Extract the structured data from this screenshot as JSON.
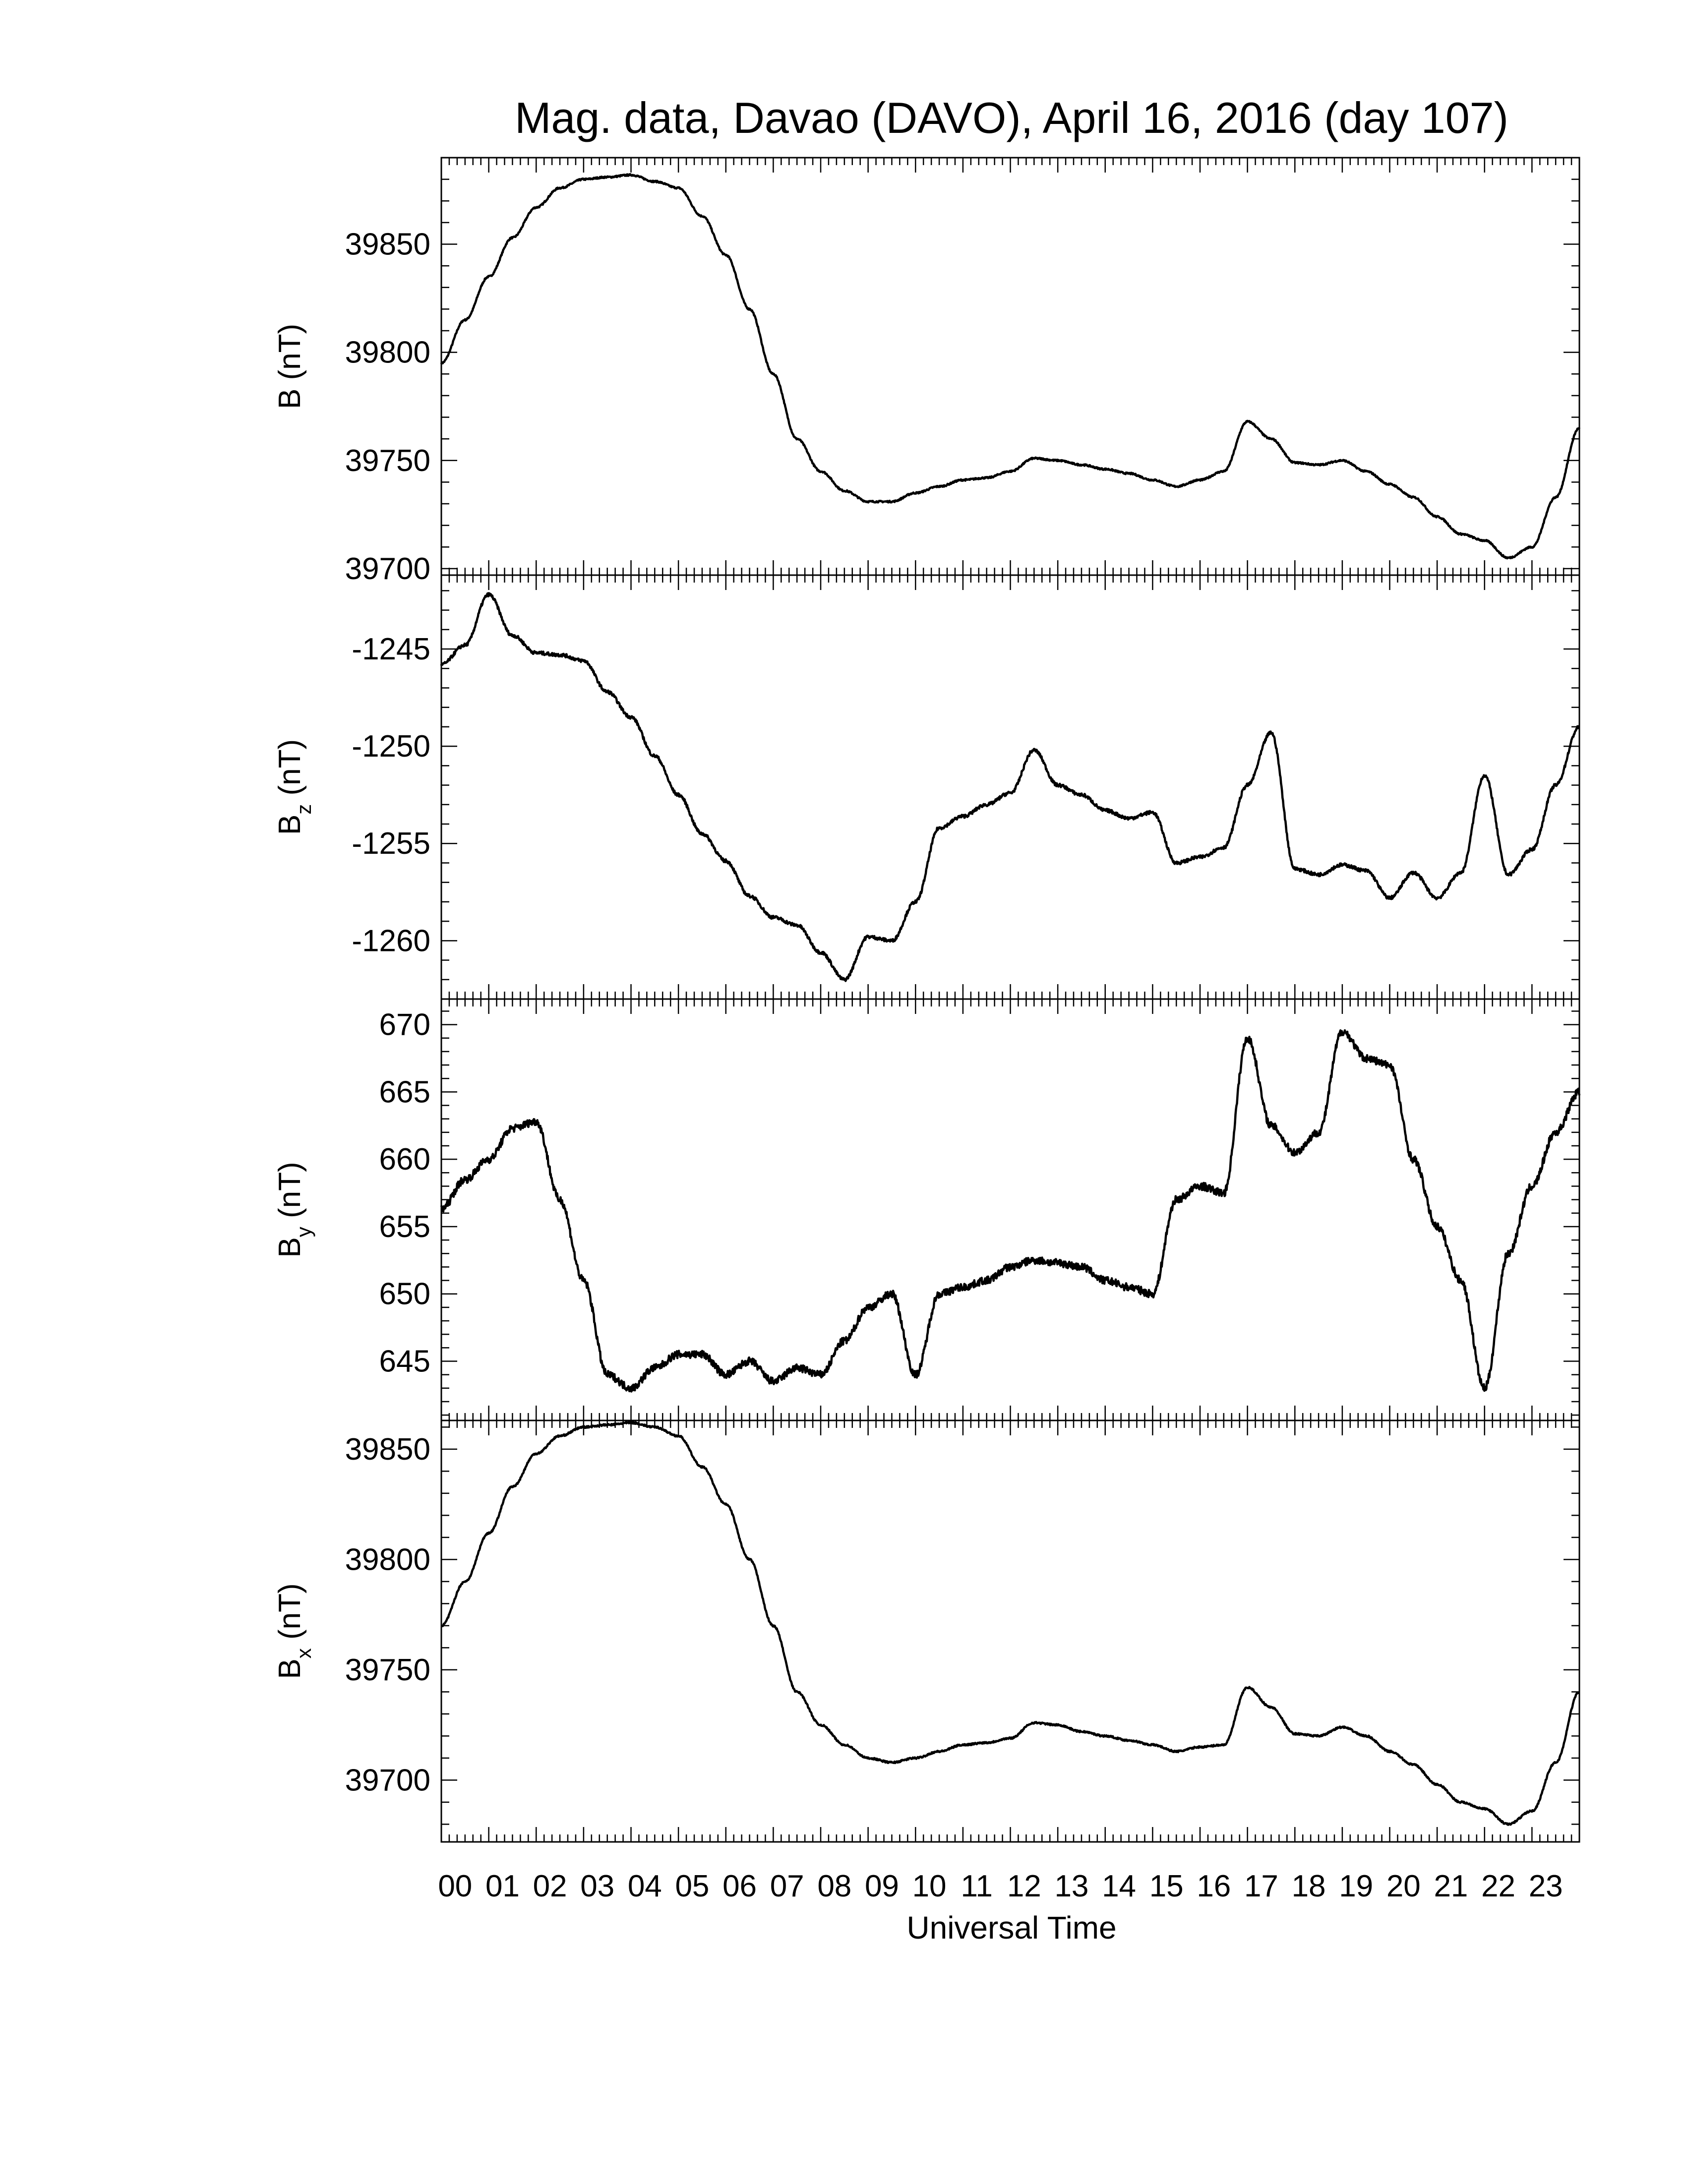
{
  "chart_data": {
    "type": "line",
    "title": "Mag. data, Davao (DAVO), April 16, 2016 (day 107)",
    "xlabel": "Universal Time",
    "x_ticks": [
      "00",
      "01",
      "02",
      "03",
      "04",
      "05",
      "06",
      "07",
      "08",
      "09",
      "10",
      "11",
      "12",
      "13",
      "14",
      "15",
      "16",
      "17",
      "18",
      "19",
      "20",
      "21",
      "22",
      "23"
    ],
    "xlim": [
      0,
      24
    ],
    "series_color": "#000000",
    "panels": [
      {
        "name": "B",
        "ylabel_main": "B",
        "ylabel_sub": "",
        "ylabel_unit": " (nT)",
        "ylim": [
          39697,
          39890
        ],
        "yticks": [
          39700,
          39750,
          39800,
          39850
        ],
        "ytick_labels": [
          "39700",
          "39750",
          "39800",
          "39850"
        ],
        "x": [
          0.0,
          0.5,
          1.0,
          1.5,
          2.0,
          2.5,
          3.0,
          3.5,
          4.0,
          4.5,
          5.0,
          5.5,
          6.0,
          6.5,
          7.0,
          7.5,
          8.0,
          8.5,
          9.0,
          9.5,
          10.0,
          10.5,
          11.0,
          11.5,
          12.0,
          12.5,
          13.0,
          13.5,
          14.0,
          14.5,
          15.0,
          15.5,
          16.0,
          16.5,
          17.0,
          17.5,
          18.0,
          18.5,
          19.0,
          19.5,
          20.0,
          20.5,
          21.0,
          21.5,
          22.0,
          22.5,
          23.0,
          23.5,
          24.0
        ],
        "values": [
          39795,
          39815,
          39835,
          39853,
          39867,
          39876,
          39880,
          39881,
          39882,
          39879,
          39876,
          39863,
          39845,
          39820,
          39790,
          39760,
          39745,
          39736,
          39731,
          39731,
          39735,
          39738,
          39741,
          39742,
          39745,
          39751,
          39750,
          39748,
          39746,
          39744,
          39741,
          39738,
          39741,
          39745,
          39768,
          39760,
          39749,
          39748,
          39750,
          39745,
          39739,
          39733,
          39724,
          39716,
          39713,
          39705,
          39710,
          39733,
          39765
        ]
      },
      {
        "name": "Bz",
        "ylabel_main": "B",
        "ylabel_sub": "z",
        "ylabel_unit": " (nT)",
        "ylim": [
          -1263.0,
          -1241.2
        ],
        "yticks": [
          -1260,
          -1255,
          -1250,
          -1245
        ],
        "ytick_labels": [
          "-1260",
          "-1255",
          "-1250",
          "-1245"
        ],
        "x": [
          0.0,
          0.5,
          1.0,
          1.5,
          2.0,
          2.5,
          3.0,
          3.5,
          4.0,
          4.5,
          5.0,
          5.5,
          6.0,
          6.5,
          7.0,
          7.5,
          8.0,
          8.5,
          9.0,
          9.5,
          10.0,
          10.5,
          11.0,
          11.5,
          12.0,
          12.5,
          13.0,
          13.5,
          14.0,
          14.5,
          15.0,
          15.5,
          16.0,
          16.5,
          17.0,
          17.5,
          18.0,
          18.5,
          19.0,
          19.5,
          20.0,
          20.5,
          21.0,
          21.5,
          22.0,
          22.5,
          23.0,
          23.5,
          24.0
        ],
        "values": [
          -1245.8,
          -1244.8,
          -1242.2,
          -1244.3,
          -1245.2,
          -1245.3,
          -1245.6,
          -1247.2,
          -1248.5,
          -1250.5,
          -1252.5,
          -1254.5,
          -1255.9,
          -1257.7,
          -1258.8,
          -1259.2,
          -1260.6,
          -1262.0,
          -1259.8,
          -1260.0,
          -1258.0,
          -1254.2,
          -1253.6,
          -1253.0,
          -1252.4,
          -1250.2,
          -1252.0,
          -1252.5,
          -1253.3,
          -1253.7,
          -1253.4,
          -1256.0,
          -1255.7,
          -1255.2,
          -1252.0,
          -1249.3,
          -1256.3,
          -1256.6,
          -1256.1,
          -1256.4,
          -1257.8,
          -1256.5,
          -1257.8,
          -1256.5,
          -1251.5,
          -1256.6,
          -1255.3,
          -1252.0,
          -1249.0
        ]
      },
      {
        "name": "By",
        "ylabel_main": "B",
        "ylabel_sub": "y",
        "ylabel_unit": " (nT)",
        "ylim": [
          640.6,
          671.9
        ],
        "yticks": [
          645,
          650,
          655,
          660,
          665,
          670
        ],
        "ytick_labels": [
          "645",
          "650",
          "655",
          "660",
          "665",
          "670"
        ],
        "x": [
          0.0,
          0.5,
          1.0,
          1.5,
          2.0,
          2.5,
          3.0,
          3.5,
          4.0,
          4.5,
          5.0,
          5.5,
          6.0,
          6.5,
          7.0,
          7.5,
          8.0,
          8.5,
          9.0,
          9.5,
          10.0,
          10.5,
          11.0,
          11.5,
          12.0,
          12.5,
          13.0,
          13.5,
          14.0,
          14.5,
          15.0,
          15.5,
          16.0,
          16.5,
          17.0,
          17.5,
          18.0,
          18.5,
          19.0,
          19.5,
          20.0,
          20.5,
          21.0,
          21.5,
          22.0,
          22.5,
          23.0,
          23.5,
          24.0
        ],
        "values": [
          656.3,
          658.5,
          660.0,
          662.3,
          662.8,
          657.0,
          651.0,
          644.0,
          643.0,
          644.5,
          645.5,
          645.5,
          644.0,
          645.0,
          643.5,
          644.5,
          644.0,
          646.5,
          649.0,
          650.0,
          644.0,
          650.0,
          650.5,
          651.0,
          652.0,
          652.5,
          652.3,
          652.0,
          651.0,
          650.5,
          650.0,
          657.0,
          658.0,
          657.5,
          669.0,
          662.5,
          660.5,
          662.0,
          669.5,
          667.5,
          667.0,
          660.0,
          655.0,
          651.0,
          643.0,
          653.0,
          658.0,
          662.0,
          665.0
        ]
      },
      {
        "name": "Bx",
        "ylabel_main": "B",
        "ylabel_sub": "x",
        "ylabel_unit": " (nT)",
        "ylim": [
          39672,
          39863
        ],
        "yticks": [
          39700,
          39750,
          39800,
          39850
        ],
        "ytick_labels": [
          "39700",
          "39750",
          "39800",
          "39850"
        ],
        "x": [
          0.0,
          0.5,
          1.0,
          1.5,
          2.0,
          2.5,
          3.0,
          3.5,
          4.0,
          4.5,
          5.0,
          5.5,
          6.0,
          6.5,
          7.0,
          7.5,
          8.0,
          8.5,
          9.0,
          9.5,
          10.0,
          10.5,
          11.0,
          11.5,
          12.0,
          12.5,
          13.0,
          13.5,
          14.0,
          14.5,
          15.0,
          15.5,
          16.0,
          16.5,
          17.0,
          17.5,
          18.0,
          18.5,
          19.0,
          19.5,
          20.0,
          20.5,
          21.0,
          21.5,
          22.0,
          22.5,
          23.0,
          23.5,
          24.0
        ],
        "values": [
          39770,
          39790,
          39812,
          39833,
          39848,
          39856,
          39860,
          39861,
          39862,
          39860,
          39856,
          39842,
          39825,
          39800,
          39770,
          39740,
          39725,
          39716,
          39710,
          39708,
          39710,
          39713,
          39716,
          39717,
          39719,
          39726,
          39725,
          39722,
          39720,
          39718,
          39716,
          39713,
          39715,
          39716,
          39742,
          39733,
          39721,
          39720,
          39724,
          39720,
          39713,
          39707,
          39698,
          39690,
          39687,
          39680,
          39686,
          39708,
          39740
        ]
      }
    ]
  }
}
